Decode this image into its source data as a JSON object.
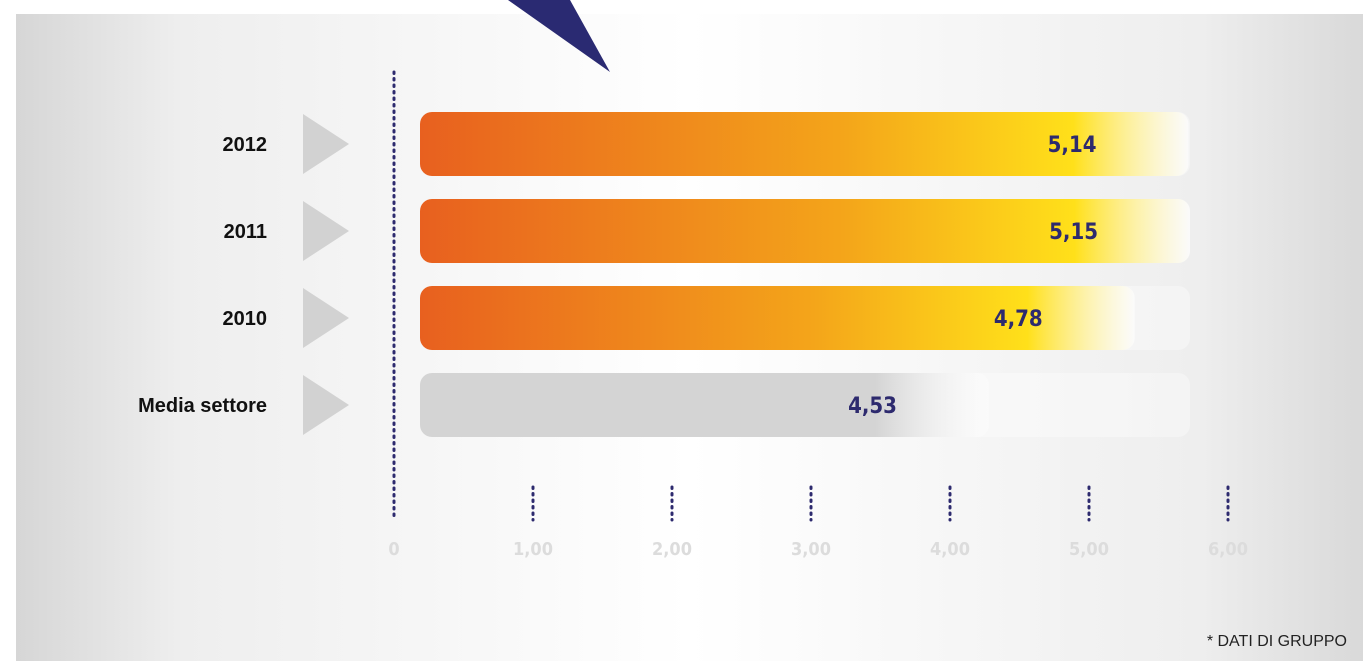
{
  "chart_data": {
    "type": "bar",
    "orientation": "horizontal",
    "categories": [
      "2012",
      "2011",
      "2010",
      "Media settore"
    ],
    "values": [
      5.14,
      5.15,
      4.78,
      4.53
    ],
    "value_labels": [
      "5,14",
      "5,15",
      "4,78",
      "4,53"
    ],
    "xlim": [
      0,
      6
    ],
    "ticks": [
      0,
      1,
      2,
      3,
      4,
      5,
      6
    ],
    "tick_labels": [
      "0",
      "1,00",
      "2,00",
      "3,00",
      "4,00",
      "5,00",
      "6,00"
    ],
    "title": "",
    "xlabel": "",
    "ylabel": "",
    "grid": false
  },
  "footnote": "* DATI DI GRUPPO",
  "colors": {
    "bar_start": "#e8601f",
    "bar_mid": "#f4a51a",
    "bar_end": "#ffe01a",
    "benchmark_bar": "#d4d4d4",
    "value_text": "#2d2a6e",
    "tick_text": "#dcdcdc",
    "dotted_axis": "#2d2a6e",
    "arrow_marker": "#d2d2d2",
    "pointer": "#2a2a72"
  }
}
